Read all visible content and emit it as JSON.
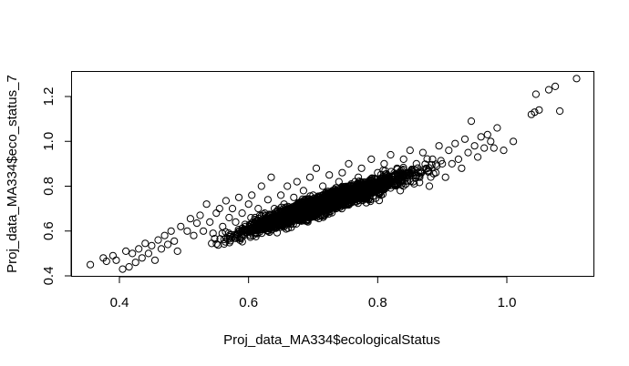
{
  "chart_data": {
    "type": "scatter",
    "title": "",
    "xlabel": "Proj_data_MA334$ecologicalStatus",
    "ylabel": "Proj_data_MA334$eco_status_7",
    "xlim": [
      0.335,
      1.125
    ],
    "ylim": [
      0.4,
      1.3
    ],
    "x_ticks": [
      0.4,
      0.6,
      0.8,
      1.0
    ],
    "x_tick_labels": [
      "0.4",
      "0.6",
      "0.8",
      "1.0"
    ],
    "y_ticks": [
      0.4,
      0.6,
      0.8,
      1.0,
      1.2
    ],
    "y_tick_labels": [
      "0.4",
      "0.6",
      "0.8",
      "1.0",
      "1.2"
    ],
    "grid": false,
    "marker": "open-circle",
    "series": [
      {
        "points": [
          [
            0.355,
            0.45
          ],
          [
            0.375,
            0.48
          ],
          [
            0.38,
            0.465
          ],
          [
            0.39,
            0.49
          ],
          [
            0.395,
            0.47
          ],
          [
            0.405,
            0.43
          ],
          [
            0.41,
            0.51
          ],
          [
            0.415,
            0.44
          ],
          [
            0.42,
            0.5
          ],
          [
            0.425,
            0.46
          ],
          [
            0.43,
            0.52
          ],
          [
            0.435,
            0.48
          ],
          [
            0.44,
            0.545
          ],
          [
            0.445,
            0.5
          ],
          [
            0.45,
            0.535
          ],
          [
            0.455,
            0.47
          ],
          [
            0.46,
            0.56
          ],
          [
            0.465,
            0.52
          ],
          [
            0.47,
            0.58
          ],
          [
            0.475,
            0.54
          ],
          [
            0.48,
            0.6
          ],
          [
            0.485,
            0.555
          ],
          [
            0.49,
            0.51
          ],
          [
            0.495,
            0.62
          ],
          [
            0.505,
            0.6
          ],
          [
            0.51,
            0.655
          ],
          [
            0.515,
            0.58
          ],
          [
            0.52,
            0.635
          ],
          [
            0.525,
            0.67
          ],
          [
            0.53,
            0.6
          ],
          [
            0.535,
            0.72
          ],
          [
            0.54,
            0.64
          ],
          [
            0.545,
            0.59
          ],
          [
            0.55,
            0.68
          ],
          [
            0.555,
            0.7
          ],
          [
            0.56,
            0.62
          ],
          [
            0.565,
            0.735
          ],
          [
            0.57,
            0.66
          ],
          [
            0.575,
            0.7
          ],
          [
            0.58,
            0.64
          ],
          [
            0.585,
            0.75
          ],
          [
            0.59,
            0.68
          ],
          [
            0.595,
            0.62
          ],
          [
            0.6,
            0.72
          ],
          [
            0.605,
            0.76
          ],
          [
            0.61,
            0.66
          ],
          [
            0.615,
            0.7
          ],
          [
            0.62,
            0.8
          ],
          [
            0.625,
            0.68
          ],
          [
            0.63,
            0.74
          ],
          [
            0.635,
            0.84
          ],
          [
            0.64,
            0.7
          ],
          [
            0.645,
            0.64
          ],
          [
            0.65,
            0.76
          ],
          [
            0.655,
            0.72
          ],
          [
            0.66,
            0.8
          ],
          [
            0.665,
            0.68
          ],
          [
            0.67,
            0.75
          ],
          [
            0.675,
            0.82
          ],
          [
            0.68,
            0.72
          ],
          [
            0.685,
            0.78
          ],
          [
            0.69,
            0.7
          ],
          [
            0.695,
            0.84
          ],
          [
            0.7,
            0.76
          ],
          [
            0.705,
            0.88
          ],
          [
            0.71,
            0.74
          ],
          [
            0.715,
            0.8
          ],
          [
            0.72,
            0.72
          ],
          [
            0.725,
            0.85
          ],
          [
            0.73,
            0.78
          ],
          [
            0.735,
            0.7
          ],
          [
            0.74,
            0.82
          ],
          [
            0.745,
            0.86
          ],
          [
            0.75,
            0.76
          ],
          [
            0.755,
            0.9
          ],
          [
            0.76,
            0.8
          ],
          [
            0.765,
            0.74
          ],
          [
            0.77,
            0.84
          ],
          [
            0.775,
            0.88
          ],
          [
            0.78,
            0.78
          ],
          [
            0.785,
            0.82
          ],
          [
            0.79,
            0.92
          ],
          [
            0.795,
            0.8
          ],
          [
            0.8,
            0.86
          ],
          [
            0.805,
            0.76
          ],
          [
            0.81,
            0.9
          ],
          [
            0.815,
            0.84
          ],
          [
            0.82,
            0.94
          ],
          [
            0.825,
            0.82
          ],
          [
            0.83,
            0.88
          ],
          [
            0.835,
            0.78
          ],
          [
            0.84,
            0.92
          ],
          [
            0.845,
            0.86
          ],
          [
            0.85,
            0.96
          ],
          [
            0.855,
            0.82
          ],
          [
            0.86,
            0.9
          ],
          [
            0.865,
            0.84
          ],
          [
            0.87,
            0.95
          ],
          [
            0.875,
            0.88
          ],
          [
            0.88,
            0.8
          ],
          [
            0.885,
            0.92
          ],
          [
            0.89,
            0.86
          ],
          [
            0.895,
            0.98
          ],
          [
            0.9,
            0.9
          ],
          [
            0.905,
            0.84
          ],
          [
            0.91,
            0.96
          ],
          [
            0.915,
            0.9
          ],
          [
            0.92,
            0.99
          ],
          [
            0.925,
            0.92
          ],
          [
            0.93,
            0.88
          ],
          [
            0.935,
            1.01
          ],
          [
            0.94,
            0.95
          ],
          [
            0.945,
            1.09
          ],
          [
            0.95,
            0.98
          ],
          [
            0.955,
            0.93
          ],
          [
            0.96,
            1.02
          ],
          [
            0.965,
            0.97
          ],
          [
            0.97,
            1.03
          ],
          [
            0.975,
            1.0
          ],
          [
            0.98,
            0.97
          ],
          [
            0.985,
            1.06
          ],
          [
            0.995,
            0.96
          ],
          [
            1.01,
            1.0
          ],
          [
            1.038,
            1.12
          ],
          [
            1.043,
            1.13
          ],
          [
            1.045,
            1.21
          ],
          [
            1.05,
            1.14
          ],
          [
            1.065,
            1.23
          ],
          [
            1.075,
            1.245
          ],
          [
            1.082,
            1.135
          ],
          [
            1.108,
            1.28
          ]
        ]
      }
    ]
  }
}
